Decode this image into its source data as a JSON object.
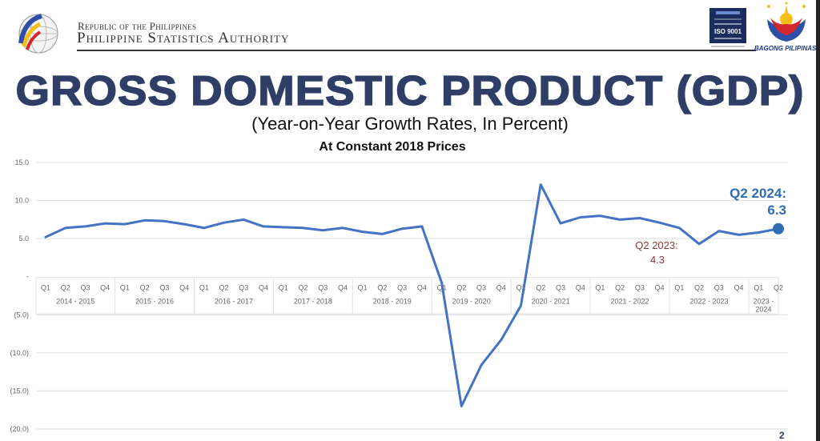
{
  "header": {
    "republic": "Republic of the Philippines",
    "agency": "Philippine Statistics Authority",
    "psa_logo_text": "PHILIPPINE STATISTICS AUTHORITY",
    "iso_badge": "ISO 9001",
    "bagong_pilipinas": "BAGONG PILIPINAS"
  },
  "title": "GROSS DOMESTIC PRODUCT (GDP)",
  "subtitle": "(Year-on-Year Growth Rates, In Percent)",
  "subsubtitle": "At Constant 2018 Prices",
  "page_number": "2",
  "colors": {
    "line": "#4472c4",
    "title": "#2e3e66",
    "highlight_latest": "#2e6db4",
    "highlight_low": "#8b3a3a",
    "grid": "#dddddd"
  },
  "chart_data": {
    "type": "line",
    "title": "GROSS DOMESTIC PRODUCT (GDP)",
    "ylim": [
      -20,
      15
    ],
    "yticks": [
      15,
      10,
      5,
      0,
      -5,
      -10,
      -15,
      -20
    ],
    "ytick_labels": [
      "15.0",
      "10.0",
      "5.0",
      "-",
      "(5.0)",
      "(10.0)",
      "(15.0)",
      "(20.0)"
    ],
    "grid": true,
    "quarter_labels": [
      "Q1",
      "Q2",
      "Q3",
      "Q4",
      "Q1",
      "Q2",
      "Q3",
      "Q4",
      "Q1",
      "Q2",
      "Q3",
      "Q4",
      "Q1",
      "Q2",
      "Q3",
      "Q4",
      "Q1",
      "Q2",
      "Q3",
      "Q4",
      "Q1",
      "Q2",
      "Q3",
      "Q4",
      "Q1",
      "Q2",
      "Q3",
      "Q4",
      "Q1",
      "Q2",
      "Q3",
      "Q4",
      "Q1",
      "Q2",
      "Q3",
      "Q4",
      "Q1",
      "Q2"
    ],
    "groups": [
      {
        "label": "2014 - 2015",
        "count": 4
      },
      {
        "label": "2015 - 2016",
        "count": 4
      },
      {
        "label": "2016 - 2017",
        "count": 4
      },
      {
        "label": "2017 - 2018",
        "count": 4
      },
      {
        "label": "2018 - 2019",
        "count": 4
      },
      {
        "label": "2019 - 2020",
        "count": 4
      },
      {
        "label": "2020 - 2021",
        "count": 4
      },
      {
        "label": "2021 - 2022",
        "count": 4
      },
      {
        "label": "2022 - 2023",
        "count": 4
      },
      {
        "label": "2023 - 2024",
        "count": 2
      }
    ],
    "series": [
      {
        "name": "GDP growth rate",
        "values": [
          5.2,
          6.4,
          6.6,
          7.0,
          6.9,
          7.4,
          7.3,
          6.9,
          6.4,
          7.1,
          7.5,
          6.6,
          6.5,
          6.4,
          6.1,
          6.4,
          5.9,
          5.6,
          6.3,
          6.6,
          -0.8,
          -17.0,
          -11.6,
          -8.3,
          -3.8,
          12.1,
          7.0,
          7.8,
          8.0,
          7.5,
          7.7,
          7.1,
          6.4,
          4.3,
          6.0,
          5.5,
          5.8,
          6.3
        ]
      }
    ],
    "annotations": [
      {
        "label": "Q2 2024:",
        "value_text": "6.3",
        "index": 37
      },
      {
        "label": "Q2 2023:",
        "value_text": "4.3",
        "index": 33
      }
    ]
  }
}
